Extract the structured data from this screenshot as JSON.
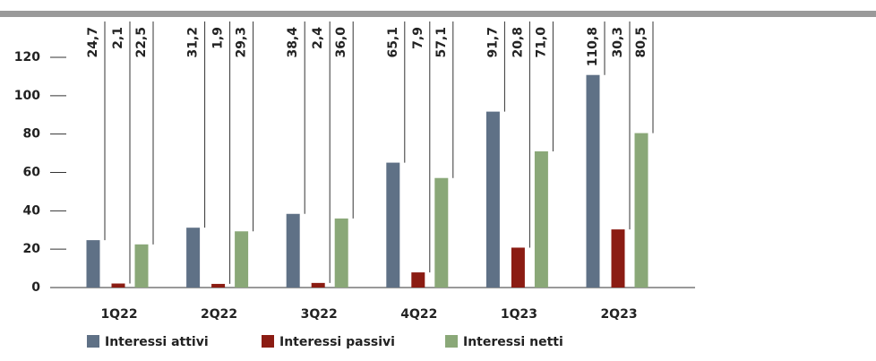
{
  "chart_data": {
    "type": "bar",
    "categories": [
      "1Q22",
      "2Q22",
      "3Q22",
      "4Q22",
      "1Q23",
      "2Q23"
    ],
    "series": [
      {
        "name": "Interessi attivi",
        "color": "#5f7186",
        "values": [
          24.7,
          31.2,
          38.4,
          65.1,
          91.7,
          110.8
        ],
        "value_labels": [
          "24,7",
          "31,2",
          "38,4",
          "65,1",
          "91,7",
          "110,8"
        ]
      },
      {
        "name": "Interessi passivi",
        "color": "#8b1c13",
        "values": [
          2.1,
          1.9,
          2.4,
          7.9,
          20.8,
          30.3
        ],
        "value_labels": [
          "2,1",
          "1,9",
          "2,4",
          "7,9",
          "20,8",
          "30,3"
        ]
      },
      {
        "name": "Interessi netti",
        "color": "#8aa878",
        "values": [
          22.5,
          29.3,
          36.0,
          57.1,
          71.0,
          80.5
        ],
        "value_labels": [
          "22,5",
          "29,3",
          "36,0",
          "57,1",
          "71,0",
          "80,5"
        ]
      }
    ],
    "ylim": [
      0,
      120
    ],
    "yticks": [
      0,
      20,
      40,
      60,
      80,
      100,
      120
    ]
  }
}
